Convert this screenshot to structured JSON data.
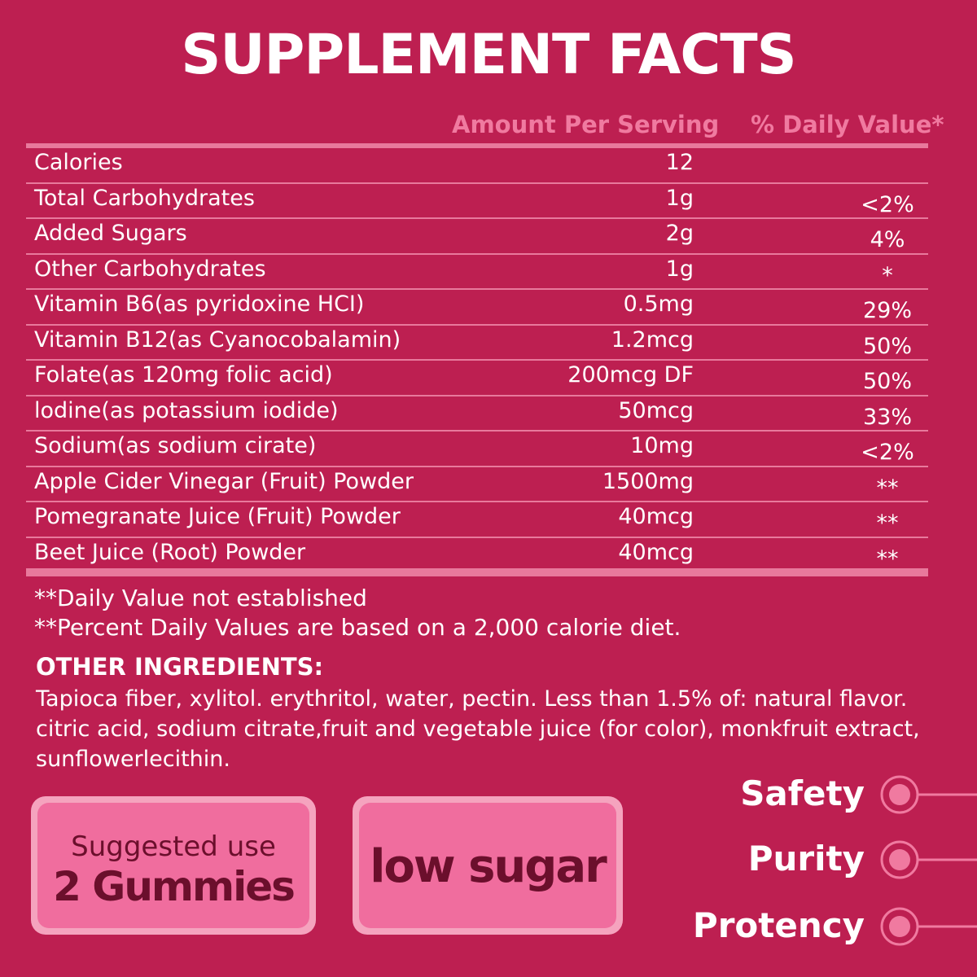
{
  "title": "SUPPLEMENT FACTS",
  "table": {
    "header": [
      "Amount Per Serving",
      "% Daily Value*"
    ],
    "rows": [
      {
        "name": "Calories",
        "amount": "12"
      },
      {
        "name": "Total Carbohydrates",
        "amount": "1g",
        "dv": "<2%"
      },
      {
        "name": "Added Sugars",
        "amount": "2g",
        "dv": "4%"
      },
      {
        "name": "Other Carbohydrates",
        "amount": "1g",
        "dv": "*"
      },
      {
        "name": "Vitamin B6(as pyridoxine HCI)",
        "amount": "0.5mg",
        "dv": "29%"
      },
      {
        "name": "Vitamin B12(as Cyanocobalamin)",
        "amount": "1.2mcg",
        "dv": "50%"
      },
      {
        "name": "Folate(as 120mg folic acid)",
        "amount": "200mcg DF",
        "dv": "50%"
      },
      {
        "name": "lodine(as potassium iodide)",
        "amount": "50mcg",
        "dv": "33%"
      },
      {
        "name": "Sodium(as sodium cirate)",
        "amount": "10mg",
        "dv": "<2%"
      },
      {
        "name": "Apple Cider Vinegar (Fruit) Powder",
        "amount": "1500mg",
        "dv": "**"
      },
      {
        "name": "Pomegranate Juice (Fruit) Powder",
        "amount": "40mcg",
        "dv": "**"
      },
      {
        "name": "Beet Juice (Root) Powder",
        "amount": "40mcg",
        "dv": "**"
      }
    ]
  },
  "notes": [
    "**Daily Value not established",
    "**Percent Daily Values are based on a 2,000 calorie diet."
  ],
  "other_ingredients": {
    "heading": "OTHER INGREDIENTS:",
    "text": "Tapioca fiber, xylitol. erythritol, water, pectin. Less than 1.5% of: natural flavor. citric acid, sodium citrate,fruit and vegetable juice (for color), monkfruit extract, sunflowerlecithin."
  },
  "badges": {
    "suggested": [
      "Suggested use",
      "2 Gummies"
    ],
    "low_sugar": "low sugar"
  },
  "features": [
    "Safety",
    "Purity",
    "Protency"
  ]
}
